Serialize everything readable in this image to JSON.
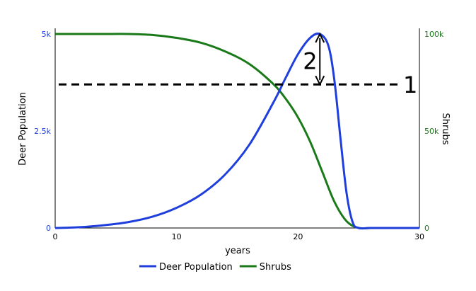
{
  "chart_data": {
    "type": "line",
    "xlabel": "years",
    "ylabel_left": "Deer Population",
    "ylabel_right": "Shrubs",
    "xlim": [
      0,
      30
    ],
    "ylim_left": [
      0,
      5000
    ],
    "ylim_right": [
      0,
      100000
    ],
    "x_ticks": [
      {
        "value": 0,
        "label": "0"
      },
      {
        "value": 10,
        "label": "10"
      },
      {
        "value": 20,
        "label": "20"
      },
      {
        "value": 30,
        "label": "30"
      }
    ],
    "y_left_ticks": [
      {
        "value": 0,
        "label": "0"
      },
      {
        "value": 2500,
        "label": "2.5k"
      },
      {
        "value": 5000,
        "label": "5k"
      }
    ],
    "y_right_ticks": [
      {
        "value": 0,
        "label": "0"
      },
      {
        "value": 50000,
        "label": "50k"
      },
      {
        "value": 100000,
        "label": "100k"
      }
    ],
    "grid": false,
    "legend_position": "bottom-center",
    "series": [
      {
        "name": "Deer Population",
        "axis": "left",
        "color": "#1f3fdc",
        "x": [
          0,
          2,
          4,
          6,
          8,
          10,
          12,
          14,
          16,
          18,
          19,
          20,
          21,
          21.8,
          22.5,
          23,
          23.5,
          24,
          24.5,
          25,
          26,
          28,
          30
        ],
        "y": [
          0,
          20,
          70,
          150,
          290,
          520,
          860,
          1380,
          2150,
          3250,
          3880,
          4480,
          4900,
          5000,
          4700,
          3800,
          2300,
          900,
          150,
          0,
          0,
          0,
          0
        ]
      },
      {
        "name": "Shrubs",
        "axis": "right",
        "color": "#1a7a1a",
        "x": [
          0,
          2,
          4,
          6,
          8,
          10,
          12,
          14,
          16,
          18,
          19,
          20,
          21,
          22,
          23,
          24,
          25,
          26,
          28,
          30
        ],
        "y": [
          100000,
          100000,
          100000,
          100000,
          99500,
          98000,
          95500,
          91000,
          84500,
          74000,
          66500,
          57000,
          44500,
          29000,
          13500,
          3500,
          0,
          0,
          0,
          0
        ]
      }
    ],
    "annotations": [
      {
        "label": "1",
        "kind": "dashed-horizontal-line",
        "axis": "left",
        "y": 3700
      },
      {
        "label": "2",
        "kind": "double-arrow",
        "axis": "left",
        "x": 21.8,
        "y_from": 3700,
        "y_to": 5000
      }
    ]
  }
}
